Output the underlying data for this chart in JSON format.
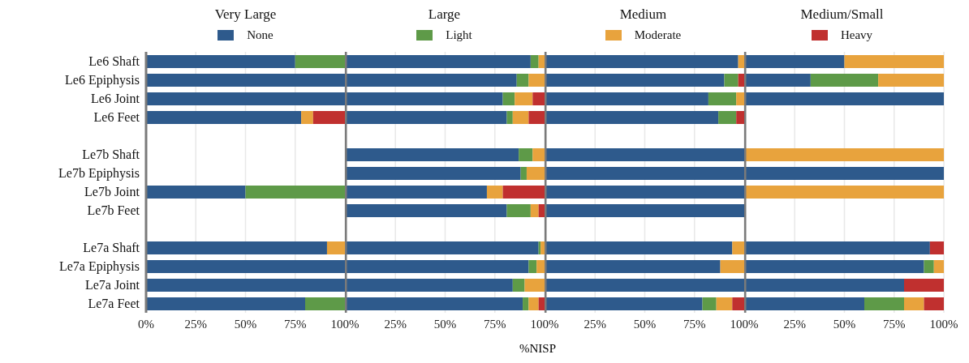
{
  "chart_data": [
    {
      "type": "bar",
      "orientation": "horizontal",
      "stacked": true,
      "title": "Very Large",
      "legend": "top",
      "grid": "x",
      "categories": [
        "Le6 Shaft",
        "Le6 Epiphysis",
        "Le6 Joint",
        "Le6 Feet",
        null,
        "Le7b Shaft",
        "Le7b Epiphysis",
        "Le7b Joint",
        "Le7b Feet",
        null,
        "Le7a Shaft",
        "Le7a Epiphysis",
        "Le7a Joint",
        "Le7a Feet"
      ],
      "xlim": [
        0,
        100
      ],
      "xticks": [
        {
          "value": 0,
          "label": "0%"
        },
        {
          "value": 25,
          "label": "25%"
        },
        {
          "value": 50,
          "label": "50%"
        },
        {
          "value": 75,
          "label": "75%"
        },
        {
          "value": 100,
          "label": "100%"
        }
      ],
      "series": [
        {
          "name": "None",
          "color": "#2e5a8c",
          "values": [
            75,
            100,
            100,
            78,
            null,
            null,
            null,
            50,
            null,
            null,
            91,
            100,
            100,
            80
          ]
        },
        {
          "name": "Light",
          "color": "#5e9a48",
          "values": [
            25,
            0,
            0,
            0,
            null,
            null,
            null,
            50,
            null,
            null,
            0,
            0,
            0,
            20
          ]
        },
        {
          "name": "Moderate",
          "color": "#e8a33d",
          "values": [
            0,
            0,
            0,
            6,
            null,
            null,
            null,
            0,
            null,
            null,
            9,
            0,
            0,
            0
          ]
        },
        {
          "name": "Heavy",
          "color": "#c0302f",
          "values": [
            0,
            0,
            0,
            16,
            null,
            null,
            null,
            0,
            null,
            null,
            0,
            0,
            0,
            0
          ]
        }
      ]
    },
    {
      "type": "bar",
      "orientation": "horizontal",
      "stacked": true,
      "title": "Large",
      "xlabel": "%NISP",
      "grid": "x",
      "tick_labels": "x",
      "xlim": [
        0,
        100
      ],
      "xticks": [
        {
          "value": 0,
          "label": null
        },
        {
          "value": 25,
          "label": "25%"
        },
        {
          "value": 50,
          "label": "50%"
        },
        {
          "value": 75,
          "label": "75%"
        },
        {
          "value": 100,
          "label": "100%"
        }
      ],
      "series": [
        {
          "color": "#2e5a8c",
          "values": [
            93,
            86,
            79,
            81,
            null,
            87,
            88,
            71,
            81,
            null,
            97,
            92,
            84,
            89
          ]
        },
        {
          "color": "#5e9a48",
          "values": [
            4,
            6,
            6,
            3,
            null,
            7,
            3,
            0,
            12,
            null,
            1,
            4,
            6,
            3
          ]
        },
        {
          "color": "#e8a33d",
          "values": [
            3,
            8,
            9,
            8,
            null,
            6,
            9,
            8,
            4,
            null,
            2,
            4,
            10,
            5
          ]
        },
        {
          "color": "#c0302f",
          "values": [
            0,
            0,
            6,
            8,
            null,
            0,
            0,
            21,
            3,
            null,
            0,
            0,
            0,
            3
          ]
        }
      ]
    },
    {
      "type": "bar",
      "orientation": "horizontal",
      "stacked": true,
      "title": "Medium",
      "grid": "x",
      "tick_labels": "x",
      "xlim": [
        0,
        100
      ],
      "xticks": [
        {
          "value": 0,
          "label": null
        },
        {
          "value": 25,
          "label": "25%"
        },
        {
          "value": 50,
          "label": "50%"
        },
        {
          "value": 75,
          "label": "75%"
        },
        {
          "value": 100,
          "label": "100%"
        }
      ],
      "series": [
        {
          "color": "#2e5a8c",
          "values": [
            97,
            90,
            82,
            87,
            null,
            100,
            100,
            100,
            100,
            null,
            94,
            88,
            100,
            79
          ]
        },
        {
          "color": "#5e9a48",
          "values": [
            0,
            7,
            14,
            9,
            null,
            0,
            0,
            0,
            0,
            null,
            0,
            0,
            0,
            7
          ]
        },
        {
          "color": "#e8a33d",
          "values": [
            3,
            0,
            4,
            0,
            null,
            0,
            0,
            0,
            0,
            null,
            6,
            12,
            0,
            8
          ]
        },
        {
          "color": "#c0302f",
          "values": [
            0,
            3,
            0,
            4,
            null,
            0,
            0,
            0,
            0,
            null,
            0,
            0,
            0,
            6
          ]
        }
      ]
    },
    {
      "type": "bar",
      "orientation": "horizontal",
      "stacked": true,
      "title": "Medium/Small",
      "grid": "x",
      "tick_labels": "x",
      "xlim": [
        0,
        100
      ],
      "xticks": [
        {
          "value": 0,
          "label": null
        },
        {
          "value": 25,
          "label": "25%"
        },
        {
          "value": 50,
          "label": "50%"
        },
        {
          "value": 75,
          "label": "75%"
        },
        {
          "value": 100,
          "label": "100%"
        }
      ],
      "series": [
        {
          "color": "#2e5a8c",
          "values": [
            50,
            33,
            100,
            null,
            null,
            0,
            100,
            0,
            null,
            null,
            93,
            90,
            80,
            60
          ]
        },
        {
          "color": "#5e9a48",
          "values": [
            0,
            34,
            0,
            null,
            null,
            0,
            0,
            0,
            null,
            null,
            0,
            5,
            0,
            20
          ]
        },
        {
          "color": "#e8a33d",
          "values": [
            50,
            33,
            0,
            null,
            null,
            100,
            0,
            100,
            null,
            null,
            0,
            5,
            0,
            10
          ]
        },
        {
          "color": "#c0302f",
          "values": [
            0,
            0,
            0,
            null,
            null,
            0,
            0,
            0,
            null,
            null,
            7,
            0,
            20,
            10
          ]
        }
      ]
    }
  ]
}
